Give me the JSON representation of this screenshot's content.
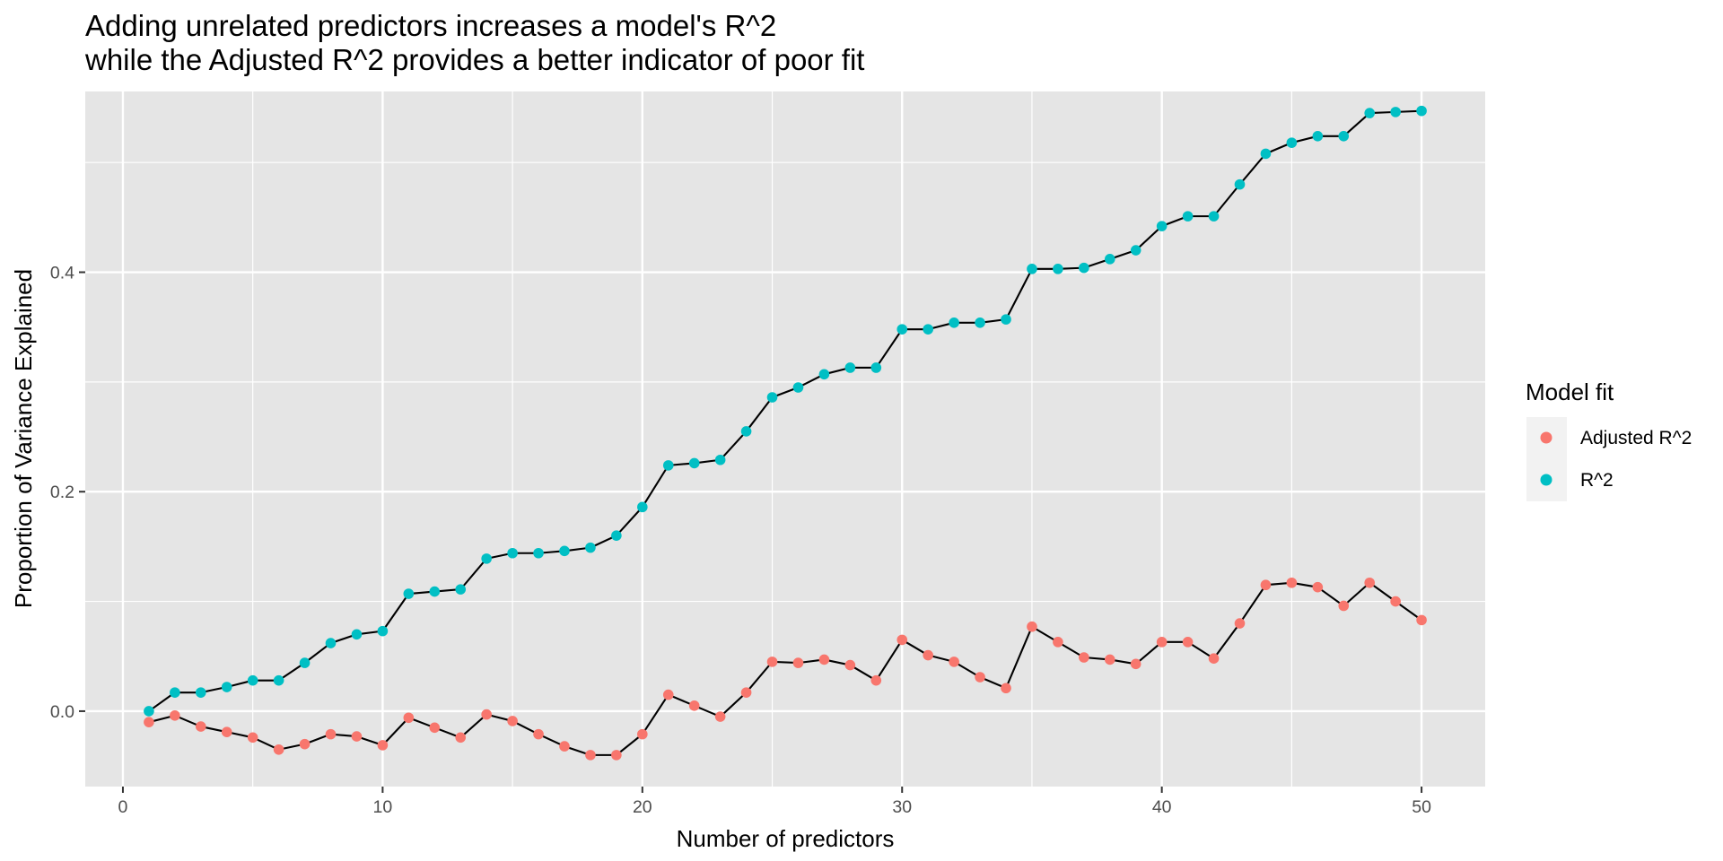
{
  "chart_data": {
    "type": "line",
    "title": [
      "Adding unrelated predictors increases a model's R^2",
      "while the Adjusted R^2 provides a better indicator of poor fit"
    ],
    "xlabel": "Number of predictors",
    "ylabel": "Proportion of Variance Explained",
    "xlim": [
      -1.45,
      52.45
    ],
    "ylim": [
      -0.0687,
      0.5647
    ],
    "x_ticks": [
      0,
      10,
      20,
      30,
      40,
      50
    ],
    "x_tick_labels": [
      "0",
      "10",
      "20",
      "30",
      "40",
      "50"
    ],
    "y_ticks": [
      0.0,
      0.2,
      0.4
    ],
    "y_tick_labels": [
      "0.0",
      "0.2",
      "0.4"
    ],
    "grid": true,
    "background": "#e5e5e5",
    "line_color": "#000000",
    "legend": {
      "title": "Model fit",
      "position": "right"
    },
    "x": [
      1,
      2,
      3,
      4,
      5,
      6,
      7,
      8,
      9,
      10,
      11,
      12,
      13,
      14,
      15,
      16,
      17,
      18,
      19,
      20,
      21,
      22,
      23,
      24,
      25,
      26,
      27,
      28,
      29,
      30,
      31,
      32,
      33,
      34,
      35,
      36,
      37,
      38,
      39,
      40,
      41,
      42,
      43,
      44,
      45,
      46,
      47,
      48,
      49,
      50
    ],
    "series": [
      {
        "name": "Adjusted R^2",
        "color": "#F8766D",
        "values": [
          -0.01,
          -0.004,
          -0.014,
          -0.019,
          -0.024,
          -0.035,
          -0.03,
          -0.021,
          -0.023,
          -0.031,
          -0.006,
          -0.015,
          -0.024,
          -0.003,
          -0.009,
          -0.021,
          -0.032,
          -0.04,
          -0.04,
          -0.021,
          0.015,
          0.005,
          -0.005,
          0.017,
          0.045,
          0.044,
          0.047,
          0.042,
          0.028,
          0.065,
          0.051,
          0.045,
          0.031,
          0.021,
          0.077,
          0.063,
          0.049,
          0.047,
          0.043,
          0.063,
          0.063,
          0.048,
          0.08,
          0.115,
          0.117,
          0.113,
          0.096,
          0.117,
          0.1,
          0.083
        ]
      },
      {
        "name": "R^2",
        "color": "#00BFC4",
        "values": [
          0.0,
          0.017,
          0.017,
          0.022,
          0.028,
          0.028,
          0.044,
          0.062,
          0.07,
          0.073,
          0.107,
          0.109,
          0.111,
          0.139,
          0.144,
          0.144,
          0.146,
          0.149,
          0.16,
          0.186,
          0.224,
          0.226,
          0.229,
          0.255,
          0.286,
          0.295,
          0.307,
          0.313,
          0.313,
          0.348,
          0.348,
          0.354,
          0.354,
          0.357,
          0.403,
          0.403,
          0.404,
          0.412,
          0.42,
          0.442,
          0.451,
          0.451,
          0.48,
          0.508,
          0.518,
          0.524,
          0.524,
          0.545,
          0.546,
          0.547
        ]
      }
    ]
  }
}
